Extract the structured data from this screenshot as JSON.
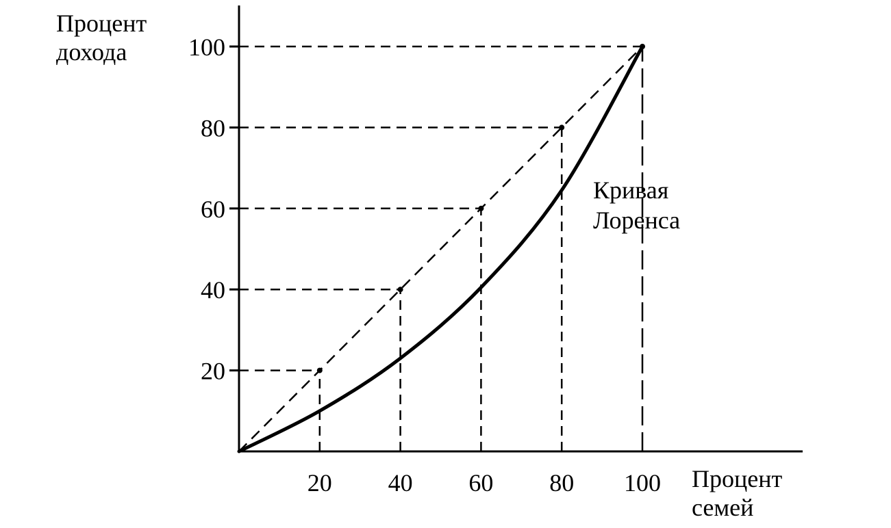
{
  "chart_data": {
    "type": "line",
    "xlabel_lines": [
      "Процент",
      "семей"
    ],
    "ylabel_lines": [
      "Процент",
      "дохода"
    ],
    "x_ticks": [
      "20",
      "40",
      "60",
      "80",
      "100"
    ],
    "y_ticks": [
      "20",
      "40",
      "60",
      "80",
      "100"
    ],
    "xlim": [
      0,
      100
    ],
    "ylim": [
      0,
      100
    ],
    "grid": "dashed guides at ticks",
    "series": [
      {
        "style": "dashed",
        "x": [
          0,
          20,
          40,
          60,
          80,
          100
        ],
        "y": [
          0,
          20,
          40,
          60,
          80,
          100
        ]
      },
      {
        "name_lines": [
          "Кривая",
          "Лоренса"
        ],
        "style": "solid",
        "x": [
          0,
          20,
          40,
          60,
          80,
          100
        ],
        "y": [
          0,
          10,
          23,
          40.5,
          64.5,
          100
        ]
      }
    ]
  }
}
